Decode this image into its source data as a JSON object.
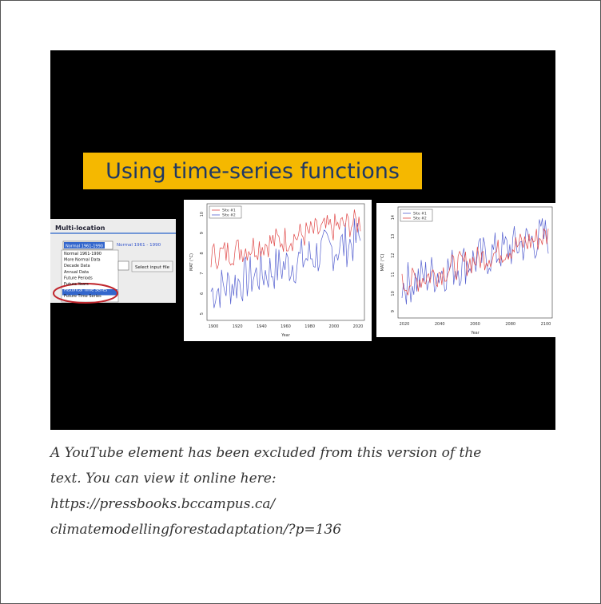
{
  "video": {
    "banner": "Using time-series functions",
    "panel": {
      "title": "Multi-location",
      "selected": "Normal 1961-1990",
      "selected_label": "Normal 1961 - 1990",
      "button": "Select input file",
      "items": [
        "Normal 1961-1990",
        "More Normal Data",
        "Decade Data",
        "Annual Data",
        "Future Periods",
        "Future Years",
        "Historical Time Series",
        "Future Time Series"
      ]
    },
    "plots": [
      {
        "legend": [
          "Site #1",
          "Site #2"
        ],
        "x_label": "Year",
        "y_label": "MAT (°C)",
        "x_ticks": [
          "1900",
          "1920",
          "1940",
          "1960",
          "1980",
          "2000",
          "2020"
        ],
        "y_ticks": [
          "5",
          "6",
          "7",
          "8",
          "9",
          "10"
        ]
      },
      {
        "legend": [
          "Site #1",
          "Site #2"
        ],
        "x_label": "Year",
        "y_label": "MAT (°C)",
        "x_ticks": [
          "2020",
          "2040",
          "2060",
          "2080",
          "2100"
        ],
        "y_ticks": [
          "9",
          "10",
          "11",
          "12",
          "13",
          "14"
        ]
      }
    ]
  },
  "caption": {
    "lines": [
      "A YouTube element has been excluded from this version of the",
      "text. You can view it online here:",
      "https://pressbooks.bccampus.ca/",
      "climatemodellingforestadaptation/?p=136"
    ]
  }
}
